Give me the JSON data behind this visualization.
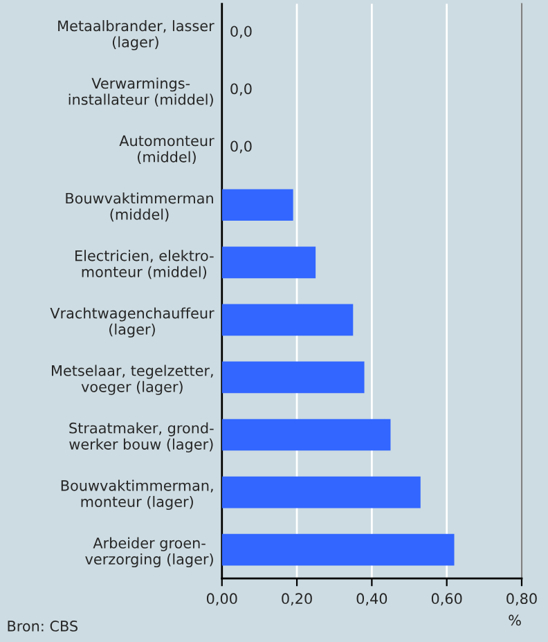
{
  "chart_data": {
    "type": "bar",
    "orientation": "horizontal",
    "xlabel": "%",
    "categories": [
      "Metaalbrander, lasser\n(lager)",
      "Verwarmings-\ninstallateur (middel)",
      "Automonteur\n(middel)",
      "Bouwvaktimmerman\n(middel)",
      "Electricien, elektro-\nmonteur (middel)",
      "Vrachtwagenchauffeur\n(lager)",
      "Metselaar, tegelzetter,\nvoeger (lager)",
      "Straatmaker, grond-\nwerker bouw (lager)",
      "Bouwvaktimmerman,\nmonteur (lager)",
      "Arbeider groen-\nverzorging (lager)"
    ],
    "values": [
      0,
      0,
      0,
      0.19,
      0.25,
      0.35,
      0.38,
      0.45,
      0.53,
      0.62
    ],
    "value_labels": [
      "0,0",
      "0,0",
      "0,0",
      null,
      null,
      null,
      null,
      null,
      null,
      null
    ],
    "color": "#3366ff",
    "xlim": [
      0,
      0.8
    ],
    "xticks": [
      {
        "value": 0,
        "label": "0,00"
      },
      {
        "value": 0.2,
        "label": "0,20"
      },
      {
        "value": 0.4,
        "label": "0,40"
      },
      {
        "value": 0.6,
        "label": "0,60"
      },
      {
        "value": 0.8,
        "label": "0,80"
      }
    ],
    "grid": "x",
    "legend": false,
    "annotations": [
      "Bron: CBS"
    ]
  }
}
